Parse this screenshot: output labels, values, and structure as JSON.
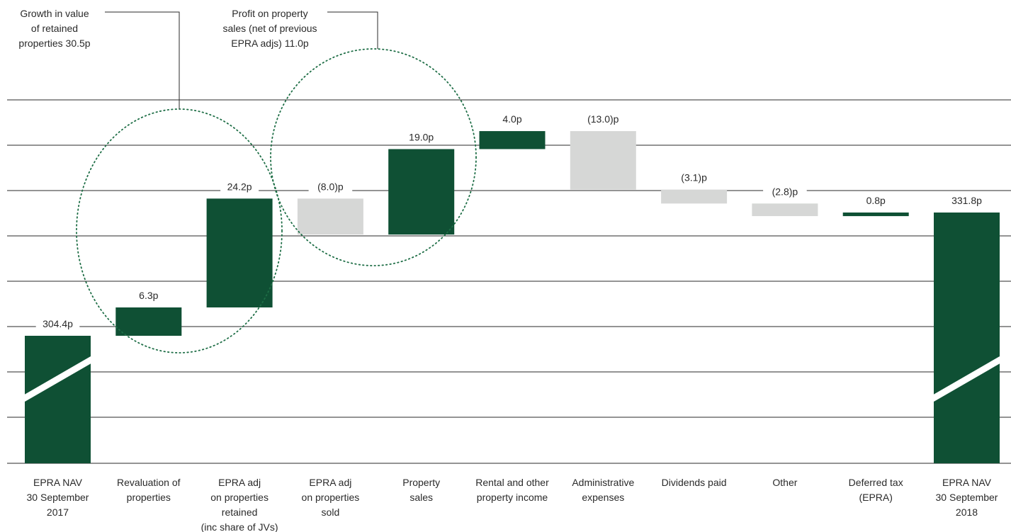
{
  "chart_data": {
    "type": "bar",
    "subtype": "waterfall",
    "unit": "p",
    "categories": [
      [
        "EPRA NAV",
        "30 September",
        "2017"
      ],
      [
        "Revaluation of",
        "properties"
      ],
      [
        "EPRA adj",
        "on properties",
        "retained",
        "(inc share of JVs)"
      ],
      [
        "EPRA adj",
        "on properties",
        "sold"
      ],
      [
        "Property",
        "sales"
      ],
      [
        "Rental and other",
        "property income"
      ],
      [
        "Administrative",
        "expenses"
      ],
      [
        "Dividends paid"
      ],
      [
        "Other"
      ],
      [
        "Deferred tax",
        "(EPRA)"
      ],
      [
        "EPRA NAV",
        "30 September",
        "2018"
      ]
    ],
    "values": [
      304.4,
      6.3,
      24.2,
      -8.0,
      19.0,
      4.0,
      -13.0,
      -3.1,
      -2.8,
      0.8,
      331.8
    ],
    "kinds": [
      "total",
      "delta",
      "delta",
      "delta",
      "delta",
      "delta",
      "delta",
      "delta",
      "delta",
      "delta",
      "total"
    ],
    "data_labels": [
      "304.4p",
      "6.3p",
      "24.2p",
      "(8.0)p",
      "19.0p",
      "4.0p",
      "(13.0)p",
      "(3.1)p",
      "(2.8)p",
      "0.8p",
      "331.8p"
    ],
    "axis_break": true,
    "grid": true,
    "colors": {
      "increase": "#0f5034",
      "decrease": "#d6d7d6",
      "total": "#0f5034",
      "grid": "#2a2a2a",
      "circle": "#1e6e46",
      "text": "#2a2a2a"
    },
    "annotations": [
      {
        "lines": [
          "Growth in value",
          "of retained",
          "properties 30.5p"
        ],
        "groups_categories": [
          1,
          2
        ]
      },
      {
        "lines": [
          "Profit on property",
          "sales (net of previous",
          "EPRA adjs) 11.0p"
        ],
        "groups_categories": [
          3,
          4
        ]
      }
    ]
  }
}
